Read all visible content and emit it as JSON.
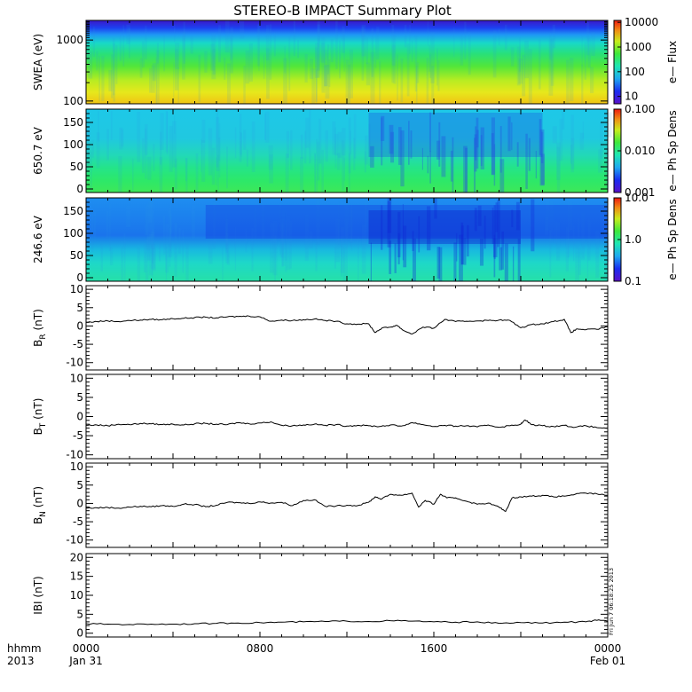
{
  "chart_data": {
    "type": "line",
    "title": "STEREO-B IMPACT Summary Plot",
    "x": {
      "range_hours": [
        0,
        24
      ],
      "tick_hours": [
        0,
        8,
        16,
        24
      ],
      "tick_labels": [
        "0000",
        "0800",
        "1600",
        "0000"
      ],
      "date_labels": [
        "Jan 31",
        "",
        "",
        "Feb 01"
      ],
      "corner_labels": [
        "hhmm",
        "2013"
      ]
    },
    "timestamp": "Fri Jun  7 06:18:25 2013",
    "spectrograms": [
      {
        "id": "swea",
        "ylabel": "SWEA (eV)",
        "yscale": "log",
        "ylim": [
          90,
          2100
        ],
        "yticks": [
          100,
          1000
        ],
        "ytick_labels": [
          "100",
          "1000"
        ],
        "colorbar": {
          "label": "e— Flux",
          "scale": "log",
          "range": [
            5,
            12000
          ],
          "ticks": [
            10,
            100,
            1000,
            10000
          ],
          "tick_labels": [
            "10",
            "100",
            "1000",
            "10000"
          ]
        }
      },
      {
        "id": "pad650",
        "ylabel": "650.7 eV",
        "yscale": "linear",
        "ylim": [
          -8,
          180
        ],
        "yticks": [
          0,
          50,
          100,
          150
        ],
        "ytick_labels": [
          "0",
          "50",
          "100",
          "150"
        ],
        "colorbar": {
          "label": "e— Ph Sp Dens",
          "scale": "log",
          "range": [
            0.001,
            0.1
          ],
          "ticks": [
            0.001,
            0.01,
            0.1
          ],
          "tick_labels": [
            "0.001",
            "0.010",
            "0.100"
          ]
        }
      },
      {
        "id": "pad246",
        "ylabel": "246.6 eV",
        "yscale": "linear",
        "ylim": [
          -8,
          180
        ],
        "yticks": [
          0,
          50,
          100,
          150
        ],
        "ytick_labels": [
          "0",
          "50",
          "100",
          "150"
        ],
        "colorbar": {
          "label": "e— Ph Sp Dens",
          "scale": "log",
          "range": [
            0.1,
            10
          ],
          "ticks": [
            0.1,
            1,
            10
          ],
          "tick_labels": [
            "0.1",
            "1.0",
            "10.0"
          ]
        }
      }
    ],
    "series": [
      {
        "id": "br",
        "ylabel_main": "B",
        "ylabel_sub": "R",
        "ylabel_unit": " (nT)",
        "ylim": [
          -12,
          11
        ],
        "yticks": [
          -10,
          -5,
          0,
          5,
          10
        ],
        "ytick_labels": [
          "-10",
          "-5",
          "0",
          "5",
          "10"
        ],
        "t": [
          0,
          0.5,
          1,
          1.5,
          2,
          2.5,
          3,
          3.5,
          4,
          4.5,
          5,
          5.5,
          6,
          6.5,
          7,
          7.5,
          8,
          8.5,
          9,
          9.5,
          10,
          10.5,
          11,
          11.5,
          12,
          12.5,
          13,
          13.3,
          13.6,
          14,
          14.3,
          14.6,
          15,
          15.5,
          16,
          16.5,
          17,
          17.5,
          18,
          18.5,
          19,
          19.5,
          20,
          20.5,
          21,
          21.5,
          22,
          22.3,
          22.6,
          23,
          23.5,
          24
        ],
        "values": [
          1.0,
          1.2,
          1.4,
          1.2,
          1.5,
          1.6,
          1.8,
          1.7,
          2.0,
          2.1,
          2.3,
          2.4,
          2.2,
          2.5,
          2.6,
          2.7,
          2.5,
          1.3,
          1.6,
          1.5,
          1.7,
          1.9,
          1.5,
          1.3,
          0.6,
          0.5,
          0.6,
          -1.8,
          -0.6,
          -0.3,
          0.2,
          -1.2,
          -2.2,
          -0.3,
          -0.6,
          1.8,
          1.2,
          1.3,
          1.4,
          1.5,
          1.6,
          1.5,
          -0.5,
          0.4,
          0.6,
          1.2,
          1.8,
          -1.8,
          -0.8,
          -1.0,
          -0.9,
          -0.2
        ]
      },
      {
        "id": "bt",
        "ylabel_main": "B",
        "ylabel_sub": "T",
        "ylabel_unit": " (nT)",
        "ylim": [
          -11,
          11
        ],
        "yticks": [
          -10,
          -5,
          0,
          5,
          10
        ],
        "ytick_labels": [
          "-10",
          "-5",
          "0",
          "5",
          "10"
        ],
        "t": [
          0,
          0.5,
          1,
          1.5,
          2,
          2.5,
          3,
          3.5,
          4,
          4.5,
          5,
          5.5,
          6,
          6.5,
          7,
          7.5,
          8,
          8.5,
          9,
          9.5,
          10,
          10.5,
          11,
          11.5,
          12,
          12.5,
          13,
          13.5,
          14,
          14.5,
          15,
          15.5,
          16,
          16.5,
          17,
          17.5,
          18,
          18.5,
          19,
          19.5,
          20,
          20.2,
          20.5,
          21,
          21.5,
          22,
          22.5,
          23,
          23.5,
          24
        ],
        "values": [
          -2.3,
          -2.2,
          -2.4,
          -2.0,
          -2.1,
          -1.8,
          -1.9,
          -2.1,
          -2.0,
          -2.2,
          -1.9,
          -1.8,
          -2.0,
          -2.1,
          -1.6,
          -1.9,
          -1.7,
          -1.4,
          -2.3,
          -2.4,
          -2.2,
          -2.0,
          -2.3,
          -2.1,
          -2.5,
          -2.3,
          -2.4,
          -2.6,
          -2.2,
          -2.5,
          -1.6,
          -2.1,
          -2.6,
          -2.3,
          -2.5,
          -2.4,
          -2.7,
          -2.2,
          -2.8,
          -2.4,
          -2.0,
          -0.9,
          -2.1,
          -2.4,
          -2.6,
          -2.3,
          -2.8,
          -2.4,
          -2.9,
          -3.0
        ]
      },
      {
        "id": "bn",
        "ylabel_main": "B",
        "ylabel_sub": "N",
        "ylabel_unit": " (nT)",
        "ylim": [
          -12,
          11
        ],
        "yticks": [
          -10,
          -5,
          0,
          5,
          10
        ],
        "ytick_labels": [
          "-10",
          "-5",
          "0",
          "5",
          "10"
        ],
        "t": [
          0,
          0.5,
          1,
          1.5,
          2,
          2.5,
          3,
          3.5,
          4,
          4.5,
          5,
          5.5,
          6,
          6.5,
          7,
          7.5,
          8,
          8.5,
          9,
          9.5,
          10,
          10.5,
          11,
          11.5,
          12,
          12.5,
          13,
          13.3,
          13.6,
          14,
          14.5,
          15,
          15.3,
          15.6,
          16,
          16.3,
          16.6,
          17,
          17.5,
          18,
          18.5,
          19,
          19.3,
          19.6,
          20,
          20.5,
          21,
          21.5,
          22,
          22.5,
          23,
          23.5,
          24
        ],
        "values": [
          -1.3,
          -1.2,
          -1.1,
          -1.3,
          -1.0,
          -0.8,
          -0.9,
          -0.6,
          -0.8,
          -0.2,
          -0.3,
          -0.9,
          -0.5,
          0.3,
          0.2,
          0.0,
          0.4,
          0.1,
          0.3,
          -0.6,
          0.8,
          1.0,
          -0.8,
          -0.7,
          -0.5,
          -0.6,
          0.3,
          1.8,
          1.2,
          2.5,
          2.2,
          2.8,
          -1.0,
          0.8,
          -0.2,
          2.5,
          1.5,
          1.5,
          0.6,
          -0.2,
          0.1,
          -1.0,
          -2.2,
          1.5,
          1.8,
          2.0,
          2.2,
          1.8,
          2.0,
          2.5,
          2.8,
          2.6,
          2.2
        ]
      },
      {
        "id": "bmag",
        "ylabel_main": "IBI",
        "ylabel_sub": "",
        "ylabel_unit": " (nT)",
        "ylim": [
          -1,
          21
        ],
        "yticks": [
          0,
          5,
          10,
          15,
          20
        ],
        "ytick_labels": [
          "0",
          "5",
          "10",
          "15",
          "20"
        ],
        "t": [
          0,
          1,
          2,
          3,
          4,
          5,
          6,
          7,
          8,
          9,
          10,
          11,
          12,
          13,
          14,
          15,
          16,
          17,
          18,
          19,
          20,
          21,
          22,
          23,
          23.5,
          24
        ],
        "values": [
          2.5,
          2.4,
          2.3,
          2.4,
          2.4,
          2.5,
          2.6,
          2.7,
          2.8,
          2.9,
          3.0,
          3.1,
          3.2,
          3.1,
          3.3,
          3.2,
          3.0,
          2.9,
          3.0,
          2.6,
          2.8,
          2.7,
          2.9,
          3.0,
          3.4,
          3.2
        ]
      }
    ]
  }
}
